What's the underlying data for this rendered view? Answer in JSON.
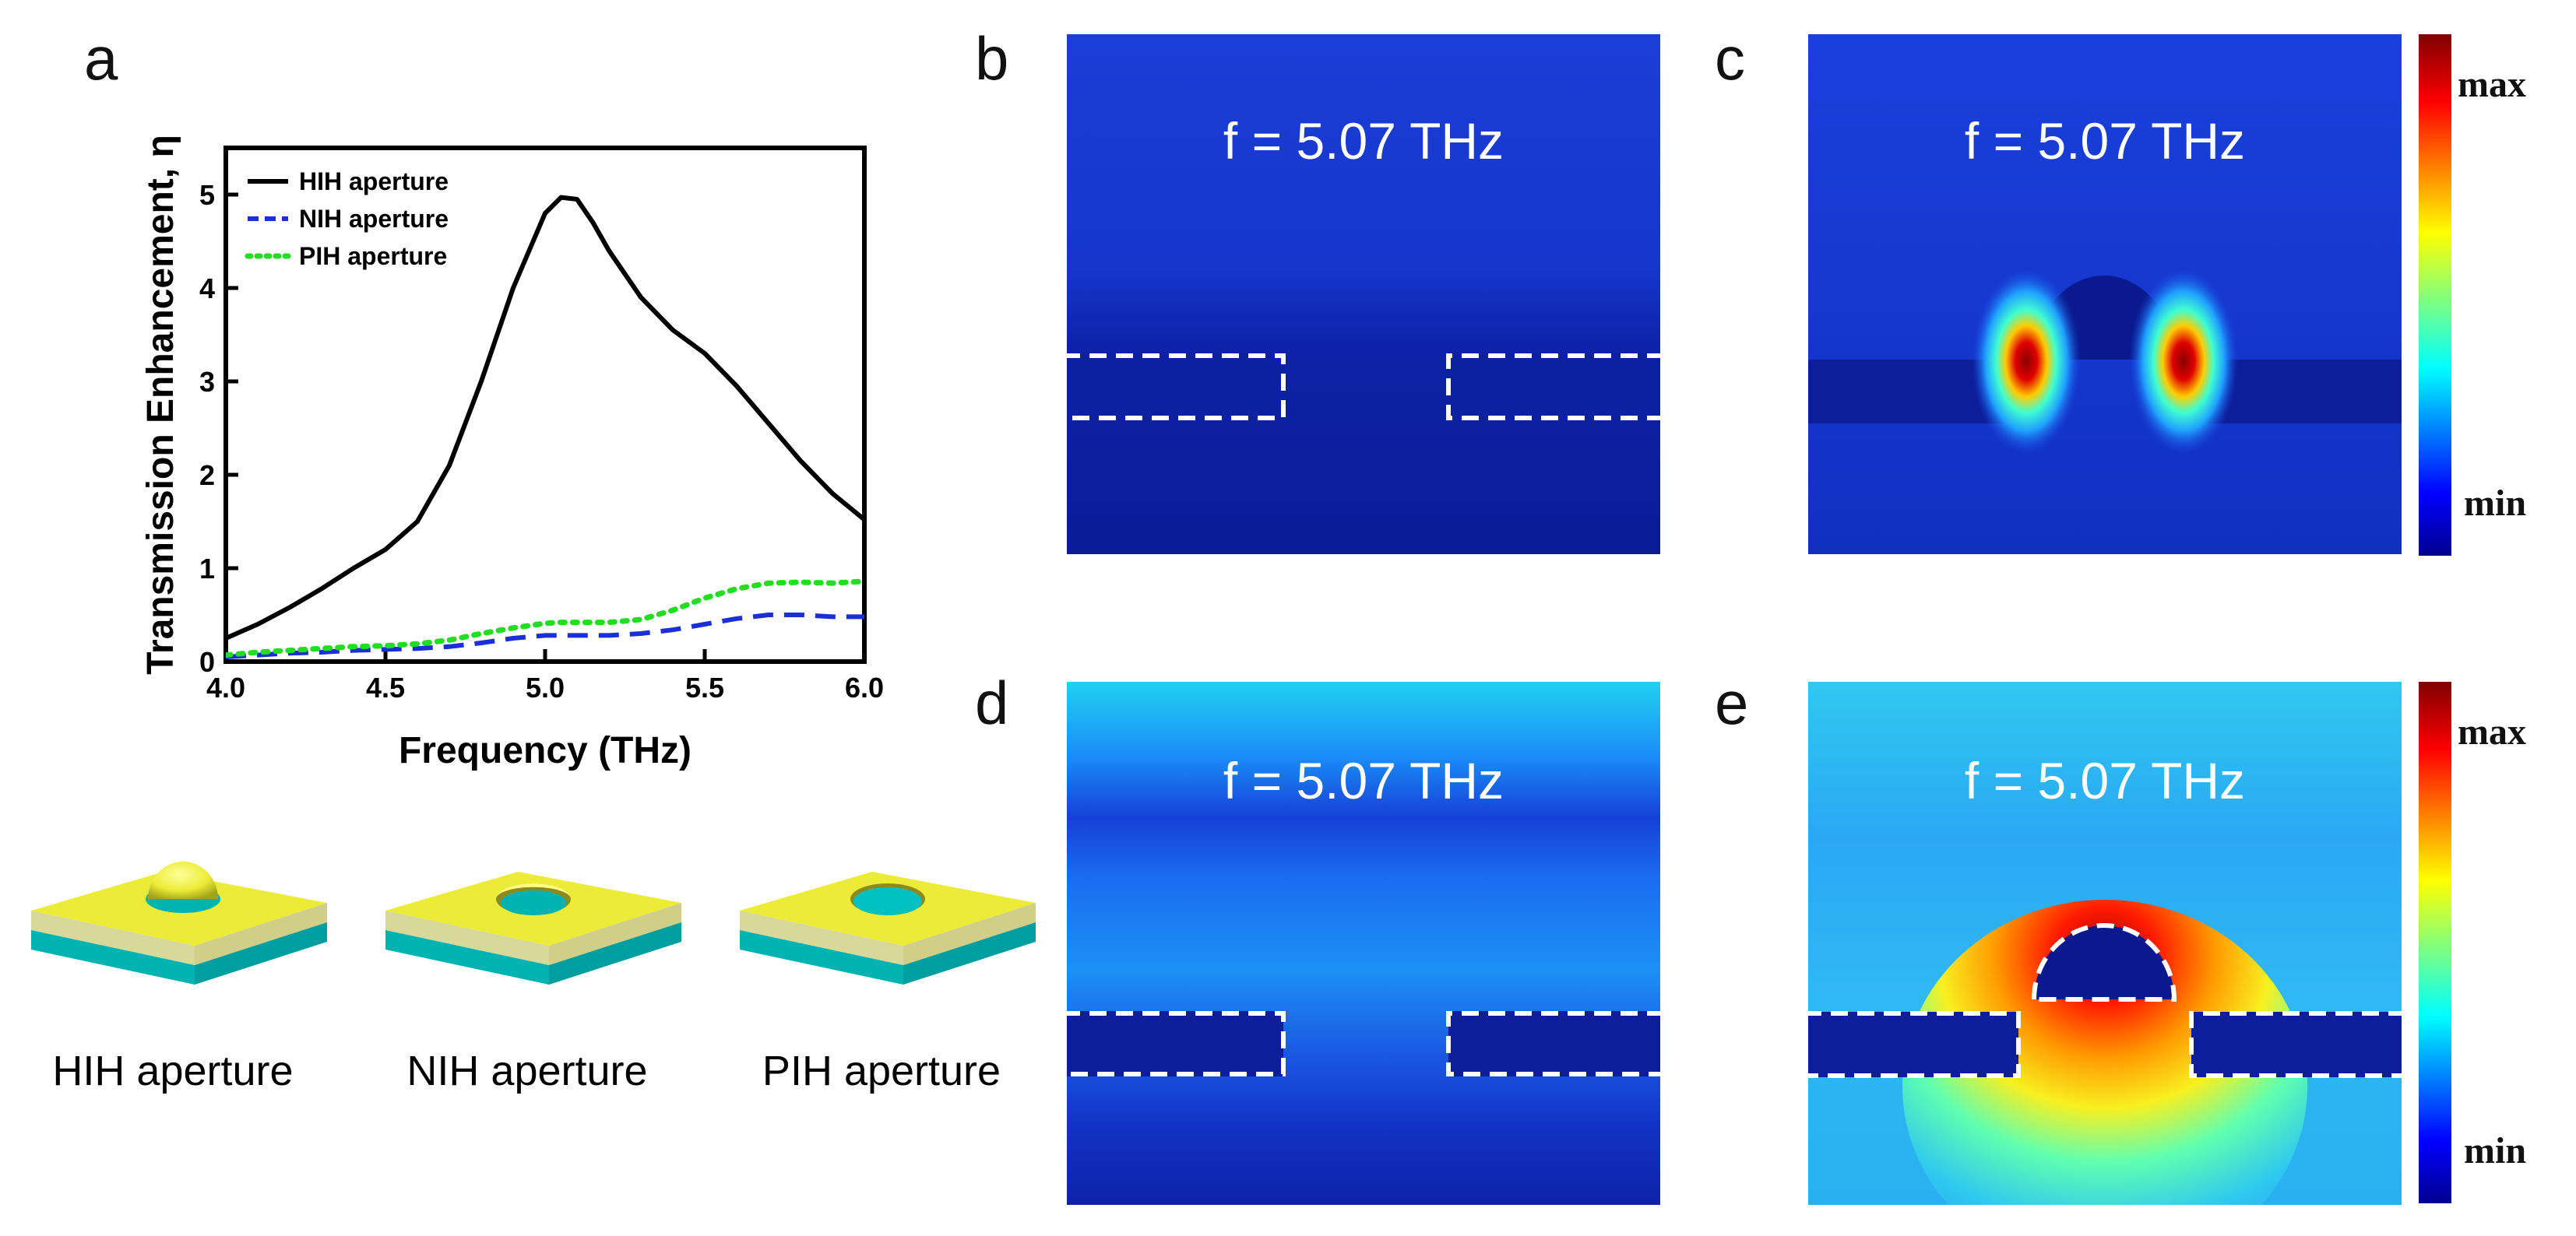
{
  "figure": {
    "panel_labels": {
      "a": "a",
      "b": "b",
      "c": "c",
      "d": "d",
      "e": "e"
    },
    "field_panels": {
      "b": {
        "freq_label": "f = 5.07 THz"
      },
      "c": {
        "freq_label": "f = 5.07 THz",
        "colorbar_max": "max",
        "colorbar_min": "min"
      },
      "d": {
        "freq_label": "f = 5.07 THz"
      },
      "e": {
        "freq_label": "f = 5.07 THz",
        "colorbar_max": "max",
        "colorbar_min": "min"
      }
    },
    "apertures": [
      {
        "name": "HIH aperture"
      },
      {
        "name": "NIH aperture"
      },
      {
        "name": "PIH aperture"
      }
    ],
    "colors": {
      "gold": "#ecec38",
      "substrate": "#00b3b3",
      "field_dark": "#0a1f9e",
      "dash": "#ffffff"
    }
  },
  "chart_data": {
    "type": "line",
    "xlabel": "Frequency (THz)",
    "ylabel": "Transmission Enhancement, η",
    "xlim": [
      4.0,
      6.0
    ],
    "ylim": [
      0,
      5.5
    ],
    "xticks": [
      "4.0",
      "4.5",
      "5.0",
      "5.5",
      "6.0"
    ],
    "yticks": [
      "0",
      "1",
      "2",
      "3",
      "4",
      "5"
    ],
    "x": [
      4.0,
      4.1,
      4.2,
      4.3,
      4.4,
      4.5,
      4.6,
      4.7,
      4.8,
      4.9,
      5.0,
      5.05,
      5.1,
      5.15,
      5.2,
      5.3,
      5.4,
      5.5,
      5.6,
      5.7,
      5.8,
      5.9,
      6.0
    ],
    "series": [
      {
        "name": "HIH aperture",
        "color": "#000000",
        "dash": "solid",
        "values": [
          0.25,
          0.4,
          0.58,
          0.78,
          1.0,
          1.2,
          1.5,
          2.1,
          3.0,
          4.0,
          4.8,
          4.97,
          4.95,
          4.7,
          4.4,
          3.9,
          3.55,
          3.3,
          2.95,
          2.55,
          2.15,
          1.8,
          1.52
        ]
      },
      {
        "name": "NIH aperture",
        "color": "#1a2fd6",
        "dash": "dashed",
        "values": [
          0.05,
          0.07,
          0.09,
          0.1,
          0.12,
          0.13,
          0.14,
          0.16,
          0.2,
          0.25,
          0.28,
          0.28,
          0.28,
          0.28,
          0.28,
          0.3,
          0.34,
          0.4,
          0.46,
          0.5,
          0.5,
          0.48,
          0.48
        ]
      },
      {
        "name": "PIH aperture",
        "color": "#22dd22",
        "dash": "dotted",
        "values": [
          0.07,
          0.1,
          0.12,
          0.14,
          0.16,
          0.17,
          0.19,
          0.23,
          0.3,
          0.36,
          0.41,
          0.42,
          0.42,
          0.42,
          0.42,
          0.45,
          0.55,
          0.68,
          0.78,
          0.84,
          0.85,
          0.84,
          0.86
        ]
      }
    ],
    "legend_position": "top-left"
  }
}
